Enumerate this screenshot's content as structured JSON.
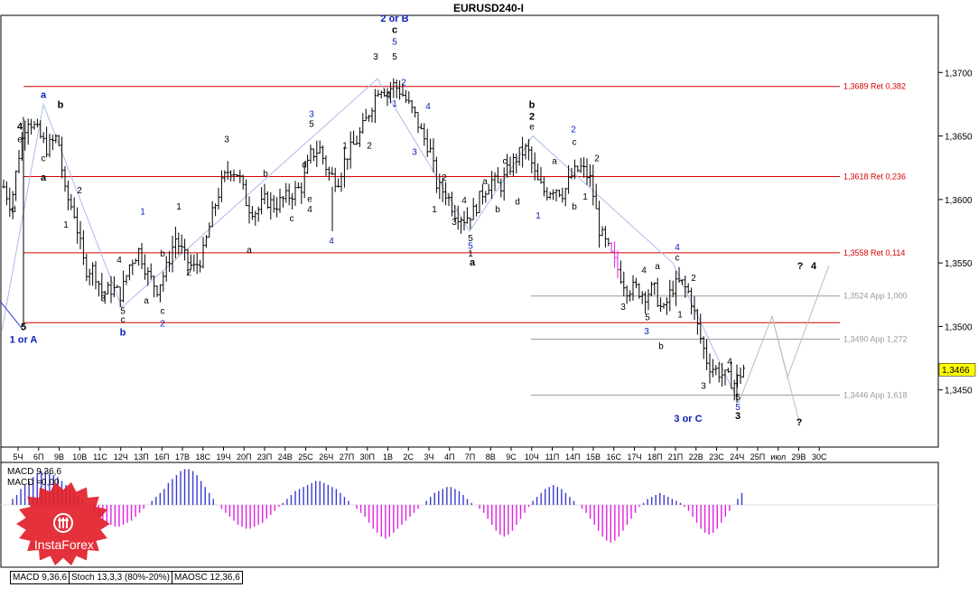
{
  "window": {
    "title": "EURUSD240-I"
  },
  "colors": {
    "red": "#d40000",
    "blue": "#0b22b8",
    "black": "#000000",
    "magenta": "#e020e0",
    "indigo": "#3a3acf",
    "grey": "#9a9a9a",
    "lightblue": "#a9bbe8",
    "badge": "#ffff00"
  },
  "chart_data": {
    "type": "candlestick-ohlc",
    "title": "EURUSD240-I",
    "y_axis": {
      "ymin": 1.3405,
      "ymax": 1.3745,
      "ticks": [
        "1,3700",
        "1,3650",
        "1,3600",
        "1,3550",
        "1,3500",
        "1,3450"
      ],
      "tick_values": [
        1.37,
        1.365,
        1.36,
        1.355,
        1.35,
        1.345
      ]
    },
    "current_price": {
      "value": 1.3466,
      "label": "1,3466"
    },
    "x_axis": {
      "labels": [
        "5Ч",
        "6П",
        "9В",
        "10В",
        "11С",
        "12Ч",
        "13П",
        "16П",
        "17В",
        "18С",
        "19Ч",
        "20П",
        "23П",
        "24В",
        "25С",
        "26Ч",
        "27П",
        "30П",
        "1В",
        "2С",
        "3Ч",
        "4П",
        "7П",
        "8В",
        "9С",
        "10Ч",
        "11П",
        "14П",
        "15В",
        "16С",
        "17Ч",
        "18П",
        "21П",
        "22В",
        "23С",
        "24Ч",
        "25П",
        "июл",
        "29В",
        "30С"
      ]
    },
    "levels": [
      {
        "label": "1,3689 Ret 0,382",
        "value": 1.3689,
        "kind": "ret"
      },
      {
        "label": "1,3618 Ret 0,236",
        "value": 1.3618,
        "kind": "ret"
      },
      {
        "label": "1,3558 Ret 0,114",
        "value": 1.3558,
        "kind": "ret"
      },
      {
        "label": "",
        "value": 1.3503,
        "kind": "ret-unlabeled"
      },
      {
        "label": "1,3524 App 1,000",
        "value": 1.3524,
        "kind": "app"
      },
      {
        "label": "1,3490 App 1,272",
        "value": 1.349,
        "kind": "app"
      },
      {
        "label": "1,3446 App 1,618",
        "value": 1.3446,
        "kind": "app"
      }
    ],
    "wave_path": [
      [
        2,
        1.3497
      ],
      [
        48,
        1.3675
      ],
      [
        135,
        1.3515
      ],
      [
        418,
        1.3695
      ],
      [
        520,
        1.3575
      ],
      [
        590,
        1.365
      ],
      [
        745,
        1.355
      ],
      [
        818,
        1.344
      ]
    ],
    "forecast_path": [
      [
        818,
        1.344
      ],
      [
        855,
        1.3508
      ],
      [
        872,
        1.346
      ],
      [
        918,
        1.3548
      ]
    ],
    "forecast_branch": [
      [
        855,
        1.3508
      ],
      [
        885,
        1.3425
      ]
    ],
    "candles_anchor": [
      [
        4,
        1.361
      ],
      [
        12,
        1.3595
      ],
      [
        22,
        1.364
      ],
      [
        30,
        1.3665
      ],
      [
        40,
        1.3655
      ],
      [
        52,
        1.364
      ],
      [
        64,
        1.365
      ],
      [
        72,
        1.3605
      ],
      [
        82,
        1.359
      ],
      [
        94,
        1.3545
      ],
      [
        104,
        1.3545
      ],
      [
        114,
        1.3525
      ],
      [
        124,
        1.353
      ],
      [
        134,
        1.3525
      ],
      [
        144,
        1.355
      ],
      [
        154,
        1.356
      ],
      [
        164,
        1.354
      ],
      [
        174,
        1.353
      ],
      [
        184,
        1.3545
      ],
      [
        194,
        1.357
      ],
      [
        204,
        1.3555
      ],
      [
        214,
        1.3545
      ],
      [
        224,
        1.3555
      ],
      [
        234,
        1.3585
      ],
      [
        244,
        1.361
      ],
      [
        254,
        1.3625
      ],
      [
        264,
        1.362
      ],
      [
        274,
        1.3595
      ],
      [
        284,
        1.359
      ],
      [
        294,
        1.36
      ],
      [
        304,
        1.3595
      ],
      [
        314,
        1.36
      ],
      [
        324,
        1.3605
      ],
      [
        334,
        1.361
      ],
      [
        344,
        1.3635
      ],
      [
        354,
        1.364
      ],
      [
        364,
        1.362
      ],
      [
        374,
        1.3615
      ],
      [
        384,
        1.3635
      ],
      [
        394,
        1.3645
      ],
      [
        404,
        1.366
      ],
      [
        412,
        1.3675
      ],
      [
        420,
        1.369
      ],
      [
        428,
        1.3685
      ],
      [
        436,
        1.369
      ],
      [
        444,
        1.3685
      ],
      [
        452,
        1.3675
      ],
      [
        460,
        1.3665
      ],
      [
        468,
        1.365
      ],
      [
        476,
        1.364
      ],
      [
        484,
        1.361
      ],
      [
        494,
        1.3605
      ],
      [
        504,
        1.359
      ],
      [
        514,
        1.3585
      ],
      [
        524,
        1.359
      ],
      [
        534,
        1.3605
      ],
      [
        544,
        1.3615
      ],
      [
        554,
        1.361
      ],
      [
        564,
        1.3625
      ],
      [
        574,
        1.3635
      ],
      [
        584,
        1.364
      ],
      [
        594,
        1.3615
      ],
      [
        604,
        1.3605
      ],
      [
        614,
        1.361
      ],
      [
        624,
        1.3605
      ],
      [
        634,
        1.362
      ],
      [
        644,
        1.3625
      ],
      [
        654,
        1.3615
      ],
      [
        664,
        1.3575
      ],
      [
        674,
        1.356
      ],
      [
        684,
        1.3545
      ],
      [
        694,
        1.353
      ],
      [
        704,
        1.353
      ],
      [
        714,
        1.3525
      ],
      [
        724,
        1.353
      ],
      [
        734,
        1.351
      ],
      [
        744,
        1.353
      ],
      [
        754,
        1.3535
      ],
      [
        764,
        1.3525
      ],
      [
        774,
        1.3495
      ],
      [
        784,
        1.347
      ],
      [
        794,
        1.3465
      ],
      [
        804,
        1.346
      ],
      [
        814,
        1.3455
      ],
      [
        824,
        1.3468
      ]
    ],
    "wave_labels": [
      {
        "t": "2 or B",
        "x": 437,
        "y": 1.374,
        "c": "blue",
        "b": true
      },
      {
        "t": "c",
        "x": 437,
        "y": 1.3731,
        "c": "black",
        "b": true
      },
      {
        "t": "5",
        "x": 437,
        "y": 1.3722,
        "c": "blue"
      },
      {
        "t": "5",
        "x": 437,
        "y": 1.371,
        "c": "black"
      },
      {
        "t": "3",
        "x": 416,
        "y": 1.371,
        "c": "black"
      },
      {
        "t": "4",
        "x": 430,
        "y": 1.368,
        "c": "black"
      },
      {
        "t": "2",
        "x": 447,
        "y": 1.369,
        "c": "blue"
      },
      {
        "t": "1",
        "x": 437,
        "y": 1.3673,
        "c": "blue"
      },
      {
        "t": "a",
        "x": 48,
        "y": 1.368,
        "c": "blue",
        "b": true
      },
      {
        "t": "b",
        "x": 67,
        "y": 1.3672,
        "c": "black",
        "b": true
      },
      {
        "t": "4",
        "x": 22,
        "y": 1.3655,
        "c": "black",
        "b": true
      },
      {
        "t": "e",
        "x": 22,
        "y": 1.3645,
        "c": "black"
      },
      {
        "t": "a",
        "x": 48,
        "y": 1.3615,
        "c": "black",
        "b": true
      },
      {
        "t": "c",
        "x": 48,
        "y": 1.363,
        "c": "black"
      },
      {
        "t": "d",
        "x": 15,
        "y": 1.359,
        "c": "black"
      },
      {
        "t": "2",
        "x": 88,
        "y": 1.3605,
        "c": "black"
      },
      {
        "t": "1",
        "x": 73,
        "y": 1.3578,
        "c": "black"
      },
      {
        "t": "5",
        "x": 26,
        "y": 1.3497,
        "c": "black",
        "b": true
      },
      {
        "t": "1 or A",
        "x": 26,
        "y": 1.3487,
        "c": "blue",
        "b": true
      },
      {
        "t": "4",
        "x": 132,
        "y": 1.355,
        "c": "black"
      },
      {
        "t": "3",
        "x": 114,
        "y": 1.352,
        "c": "black"
      },
      {
        "t": "5",
        "x": 136,
        "y": 1.351,
        "c": "black"
      },
      {
        "t": "c",
        "x": 136,
        "y": 1.3503,
        "c": "black"
      },
      {
        "t": "b",
        "x": 136,
        "y": 1.3493,
        "c": "blue",
        "b": true
      },
      {
        "t": "1",
        "x": 158,
        "y": 1.3588,
        "c": "blue"
      },
      {
        "t": "b",
        "x": 180,
        "y": 1.3555,
        "c": "black"
      },
      {
        "t": "a",
        "x": 162,
        "y": 1.3518,
        "c": "black"
      },
      {
        "t": "c",
        "x": 180,
        "y": 1.351,
        "c": "black"
      },
      {
        "t": "2",
        "x": 180,
        "y": 1.35,
        "c": "blue"
      },
      {
        "t": "1",
        "x": 198,
        "y": 1.3592,
        "c": "black"
      },
      {
        "t": "2",
        "x": 209,
        "y": 1.354,
        "c": "black"
      },
      {
        "t": "3",
        "x": 251,
        "y": 1.3645,
        "c": "black"
      },
      {
        "t": "b",
        "x": 294,
        "y": 1.3618,
        "c": "black"
      },
      {
        "t": "a",
        "x": 276,
        "y": 1.3558,
        "c": "black"
      },
      {
        "t": "c",
        "x": 323,
        "y": 1.3583,
        "c": "black"
      },
      {
        "t": "3",
        "x": 345,
        "y": 1.3665,
        "c": "blue"
      },
      {
        "t": "5",
        "x": 345,
        "y": 1.3657,
        "c": "black"
      },
      {
        "t": "d",
        "x": 337,
        "y": 1.3625,
        "c": "black"
      },
      {
        "t": "e",
        "x": 343,
        "y": 1.3598,
        "c": "black"
      },
      {
        "t": "4",
        "x": 343,
        "y": 1.359,
        "c": "black"
      },
      {
        "t": "4",
        "x": 367,
        "y": 1.3565,
        "c": "blue"
      },
      {
        "t": "1",
        "x": 382,
        "y": 1.364,
        "c": "black"
      },
      {
        "t": "2",
        "x": 409,
        "y": 1.364,
        "c": "black"
      },
      {
        "t": "4",
        "x": 474,
        "y": 1.3671,
        "c": "blue"
      },
      {
        "t": "3",
        "x": 459,
        "y": 1.3635,
        "c": "blue"
      },
      {
        "t": "2",
        "x": 492,
        "y": 1.3615,
        "c": "black"
      },
      {
        "t": "1",
        "x": 481,
        "y": 1.359,
        "c": "black"
      },
      {
        "t": "4",
        "x": 514,
        "y": 1.3597,
        "c": "black"
      },
      {
        "t": "3",
        "x": 503,
        "y": 1.358,
        "c": "black"
      },
      {
        "t": "a",
        "x": 537,
        "y": 1.3612,
        "c": "black"
      },
      {
        "t": "c",
        "x": 559,
        "y": 1.3628,
        "c": "black"
      },
      {
        "t": "b",
        "x": 551,
        "y": 1.359,
        "c": "black"
      },
      {
        "t": "d",
        "x": 573,
        "y": 1.3596,
        "c": "black"
      },
      {
        "t": "5",
        "x": 521,
        "y": 1.3567,
        "c": "black"
      },
      {
        "t": "5",
        "x": 521,
        "y": 1.3561,
        "c": "blue"
      },
      {
        "t": "1",
        "x": 521,
        "y": 1.3555,
        "c": "black"
      },
      {
        "t": "a",
        "x": 523,
        "y": 1.3548,
        "c": "black",
        "b": true
      },
      {
        "t": "b",
        "x": 589,
        "y": 1.3672,
        "c": "black",
        "b": true
      },
      {
        "t": "2",
        "x": 589,
        "y": 1.3663,
        "c": "black",
        "b": true
      },
      {
        "t": "e",
        "x": 589,
        "y": 1.3655,
        "c": "black"
      },
      {
        "t": "1",
        "x": 596,
        "y": 1.3585,
        "c": "blue"
      },
      {
        "t": "2",
        "x": 635,
        "y": 1.3653,
        "c": "blue"
      },
      {
        "t": "c",
        "x": 636,
        "y": 1.3643,
        "c": "black"
      },
      {
        "t": "a",
        "x": 614,
        "y": 1.3628,
        "c": "black"
      },
      {
        "t": "b",
        "x": 636,
        "y": 1.3592,
        "c": "black"
      },
      {
        "t": "2",
        "x": 661,
        "y": 1.363,
        "c": "black"
      },
      {
        "t": "1",
        "x": 648,
        "y": 1.36,
        "c": "black"
      },
      {
        "t": "4",
        "x": 750,
        "y": 1.356,
        "c": "blue"
      },
      {
        "t": "c",
        "x": 750,
        "y": 1.3552,
        "c": "black"
      },
      {
        "t": "a",
        "x": 728,
        "y": 1.3545,
        "c": "black"
      },
      {
        "t": "4",
        "x": 713,
        "y": 1.3542,
        "c": "black"
      },
      {
        "t": "2",
        "x": 768,
        "y": 1.3536,
        "c": "black"
      },
      {
        "t": "1",
        "x": 753,
        "y": 1.3507,
        "c": "black"
      },
      {
        "t": "3",
        "x": 690,
        "y": 1.3513,
        "c": "black"
      },
      {
        "t": "5",
        "x": 717,
        "y": 1.3505,
        "c": "black"
      },
      {
        "t": "3",
        "x": 716,
        "y": 1.3494,
        "c": "blue"
      },
      {
        "t": "b",
        "x": 732,
        "y": 1.3482,
        "c": "black"
      },
      {
        "t": "4",
        "x": 808,
        "y": 1.347,
        "c": "black"
      },
      {
        "t": "3",
        "x": 779,
        "y": 1.3451,
        "c": "black"
      },
      {
        "t": "5",
        "x": 817,
        "y": 1.3442,
        "c": "black"
      },
      {
        "t": "5",
        "x": 817,
        "y": 1.3434,
        "c": "blue"
      },
      {
        "t": "3",
        "x": 817,
        "y": 1.3427,
        "c": "black",
        "b": true
      },
      {
        "t": "3 or C",
        "x": 762,
        "y": 1.3425,
        "c": "blue",
        "b": true
      },
      {
        "t": "?",
        "x": 885,
        "y": 1.3422,
        "c": "black",
        "b": true
      },
      {
        "t": "?",
        "x": 886,
        "y": 1.3545,
        "c": "black",
        "b": true
      },
      {
        "t": "4",
        "x": 901,
        "y": 1.3545,
        "c": "black",
        "b": true
      }
    ],
    "indicator": {
      "name": "MACD",
      "label_line1": "MACD 9,36,6",
      "label_line2": "MACD =0,00",
      "bars": [
        3,
        5,
        8,
        10,
        12,
        14,
        16,
        17,
        17,
        16,
        15,
        14,
        12,
        10,
        8,
        6,
        4,
        2,
        0,
        -2,
        -4,
        -6,
        -8,
        -9,
        -10,
        -11,
        -11,
        -10,
        -9,
        -8,
        -6,
        -4,
        -2,
        0,
        2,
        4,
        6,
        8,
        11,
        13,
        15,
        17,
        18,
        18,
        17,
        15,
        12,
        9,
        6,
        3,
        0,
        -2,
        -4,
        -6,
        -8,
        -10,
        -11,
        -12,
        -12,
        -11,
        -10,
        -9,
        -7,
        -5,
        -3,
        -1,
        1,
        3,
        5,
        7,
        8,
        9,
        10,
        11,
        12,
        12,
        11,
        10,
        9,
        8,
        6,
        4,
        2,
        0,
        -2,
        -4,
        -6,
        -9,
        -12,
        -14,
        -16,
        -17,
        -16,
        -14,
        -12,
        -10,
        -8,
        -6,
        -4,
        -2,
        0,
        2,
        4,
        6,
        7,
        8,
        9,
        9,
        8,
        7,
        5,
        3,
        1,
        0,
        -2,
        -4,
        -7,
        -10,
        -13,
        -15,
        -16,
        -15,
        -13,
        -10,
        -7,
        -4,
        -1,
        2,
        4,
        6,
        8,
        9,
        10,
        9,
        8,
        6,
        4,
        2,
        0,
        -2,
        -4,
        -7,
        -10,
        -13,
        -16,
        -18,
        -19,
        -18,
        -16,
        -13,
        -10,
        -7,
        -4,
        -1,
        1,
        3,
        4,
        5,
        6,
        5,
        4,
        3,
        2,
        1,
        -1,
        -3,
        -6,
        -9,
        -12,
        -14,
        -15,
        -14,
        -12,
        -9,
        -6,
        -3,
        0,
        3,
        6
      ],
      "bars_end_index_magenta": []
    },
    "tabs": [
      {
        "label": "MACD 9,36,6",
        "active": true
      },
      {
        "label": "Stoch 13,3,3 (80%-20%)",
        "active": false
      },
      {
        "label": "MAOSC 12,36,6",
        "active": false
      }
    ]
  },
  "logo": {
    "text": "InstaForex"
  }
}
